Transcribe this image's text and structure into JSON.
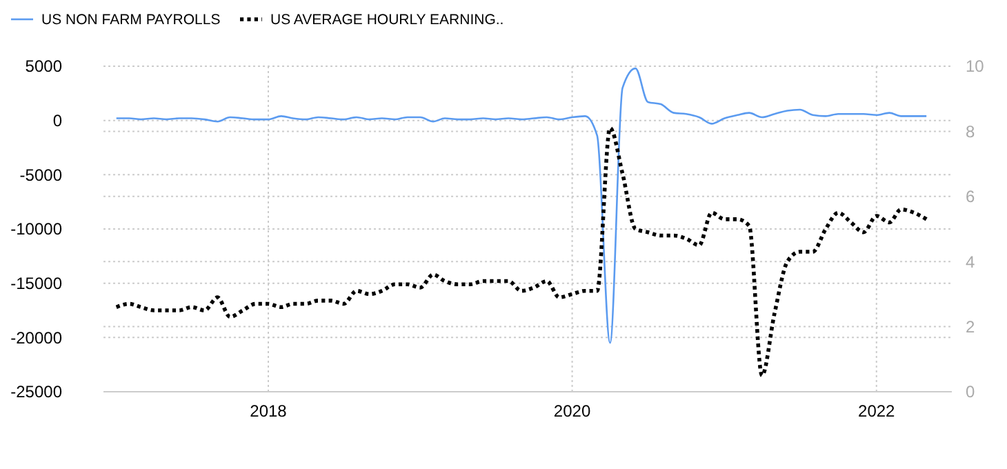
{
  "chart_data": {
    "type": "line",
    "x": [
      "2017-01",
      "2017-02",
      "2017-03",
      "2017-04",
      "2017-05",
      "2017-06",
      "2017-07",
      "2017-08",
      "2017-09",
      "2017-10",
      "2017-11",
      "2017-12",
      "2018-01",
      "2018-02",
      "2018-03",
      "2018-04",
      "2018-05",
      "2018-06",
      "2018-07",
      "2018-08",
      "2018-09",
      "2018-10",
      "2018-11",
      "2018-12",
      "2019-01",
      "2019-02",
      "2019-03",
      "2019-04",
      "2019-05",
      "2019-06",
      "2019-07",
      "2019-08",
      "2019-09",
      "2019-10",
      "2019-11",
      "2019-12",
      "2020-01",
      "2020-02",
      "2020-03",
      "2020-04",
      "2020-05",
      "2020-06",
      "2020-07",
      "2020-08",
      "2020-09",
      "2020-10",
      "2020-11",
      "2020-12",
      "2021-01",
      "2021-02",
      "2021-03",
      "2021-04",
      "2021-05",
      "2021-06",
      "2021-07",
      "2021-08",
      "2021-09",
      "2021-10",
      "2021-11",
      "2021-12",
      "2022-01",
      "2022-02",
      "2022-03",
      "2022-04",
      "2022-05"
    ],
    "series": [
      {
        "name": "US NON FARM PAYROLLS",
        "color": "#5b9bf0",
        "line_style": "solid",
        "values": [
          200,
          200,
          100,
          200,
          100,
          200,
          200,
          100,
          -100,
          300,
          200,
          100,
          100,
          400,
          200,
          100,
          300,
          200,
          100,
          300,
          100,
          200,
          100,
          300,
          300,
          -100,
          200,
          100,
          100,
          200,
          100,
          200,
          100,
          200,
          300,
          100,
          300,
          400,
          -1400,
          -20500,
          3000,
          4800,
          1700,
          1500,
          700,
          600,
          300,
          -300,
          200,
          500,
          700,
          300,
          600,
          900,
          1000,
          500,
          400,
          600,
          600,
          600,
          500,
          700,
          400,
          400,
          400
        ]
      },
      {
        "name": "US AVERAGE HOURLY EARNING..",
        "color": "#000000",
        "axis": "y2",
        "line_style": "dotted",
        "values": [
          2.6,
          2.7,
          2.6,
          2.5,
          2.5,
          2.5,
          2.6,
          2.5,
          2.9,
          2.3,
          2.5,
          2.7,
          2.7,
          2.6,
          2.7,
          2.7,
          2.8,
          2.8,
          2.7,
          3.1,
          3.0,
          3.1,
          3.3,
          3.3,
          3.2,
          3.6,
          3.4,
          3.3,
          3.3,
          3.4,
          3.4,
          3.4,
          3.1,
          3.2,
          3.4,
          2.9,
          3.0,
          3.1,
          3.1,
          8.1,
          6.7,
          5.0,
          4.9,
          4.8,
          4.8,
          4.7,
          4.5,
          5.5,
          5.3,
          5.3,
          5.1,
          0.5,
          2.4,
          4.0,
          4.3,
          4.3,
          5.0,
          5.5,
          5.2,
          4.9,
          5.4,
          5.2,
          5.6,
          5.5,
          5.3
        ]
      }
    ],
    "xlim": [
      "2016-12",
      "2022-07"
    ],
    "xticks": [
      "2018",
      "2020",
      "2022"
    ],
    "ylim": [
      -25000,
      5000
    ],
    "yticks": [
      -25000,
      -20000,
      -15000,
      -10000,
      -5000,
      0,
      5000
    ],
    "y2lim": [
      0,
      10
    ],
    "y2ticks": [
      0,
      2,
      4,
      6,
      8,
      10
    ],
    "grid": true,
    "legend": "top left"
  }
}
